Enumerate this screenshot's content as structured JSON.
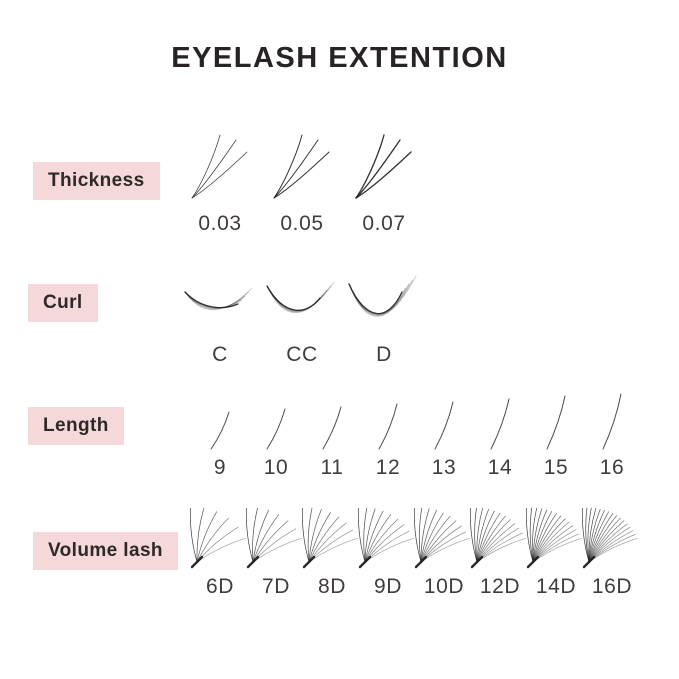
{
  "title": "EYELASH EXTENTION",
  "colors": {
    "badge_bg": "#f4d8da",
    "badge_text": "#2e2829",
    "title_text": "#272326",
    "label_text": "#403c3c",
    "lash_stroke": "#1f1f1f",
    "background": "#ffffff"
  },
  "rows": [
    {
      "id": "thickness",
      "label": "Thickness",
      "type": "thickness",
      "items": [
        {
          "label": "0.03",
          "stroke_width": 0.7
        },
        {
          "label": "0.05",
          "stroke_width": 1.0
        },
        {
          "label": "0.07",
          "stroke_width": 1.35
        }
      ]
    },
    {
      "id": "curl",
      "label": "Curl",
      "type": "curl",
      "items": [
        {
          "label": "C",
          "curl_depth": 28
        },
        {
          "label": "CC",
          "curl_depth": 34
        },
        {
          "label": "D",
          "curl_depth": 40
        }
      ]
    },
    {
      "id": "length",
      "label": "Length",
      "type": "length",
      "items": [
        {
          "label": "9",
          "length_mm": 9
        },
        {
          "label": "10",
          "length_mm": 10
        },
        {
          "label": "11",
          "length_mm": 11
        },
        {
          "label": "12",
          "length_mm": 12
        },
        {
          "label": "13",
          "length_mm": 13
        },
        {
          "label": "14",
          "length_mm": 14
        },
        {
          "label": "15",
          "length_mm": 15
        },
        {
          "label": "16",
          "length_mm": 16
        }
      ]
    },
    {
      "id": "volume",
      "label": "Volume lash",
      "type": "volume",
      "items": [
        {
          "label": "6D",
          "strands": 6
        },
        {
          "label": "7D",
          "strands": 7
        },
        {
          "label": "8D",
          "strands": 8
        },
        {
          "label": "9D",
          "strands": 9
        },
        {
          "label": "10D",
          "strands": 10
        },
        {
          "label": "12D",
          "strands": 12
        },
        {
          "label": "14D",
          "strands": 14
        },
        {
          "label": "16D",
          "strands": 16
        }
      ]
    }
  ]
}
